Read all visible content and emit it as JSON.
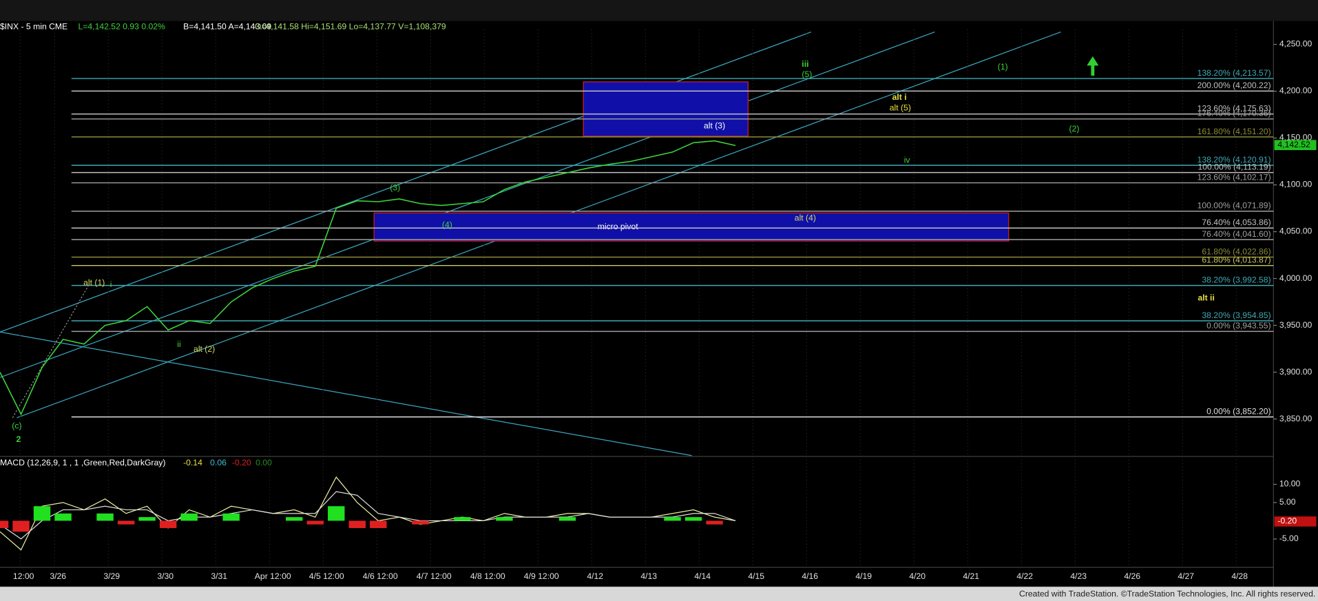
{
  "chart_data": [
    {
      "type": "line",
      "header": [
        {
          "text": "$INX - 5 min  CME",
          "color": "#ffffff"
        },
        {
          "text": "L=4,142.52  0.93  0.02%",
          "color": "#3cd43c"
        },
        {
          "text": "B=4,141.50  A=4,143.09",
          "color": "#ffffff"
        },
        {
          "text": "O=4,141.58  Hi=4,151.69  Lo=4,137.77  V=1,108,379",
          "color": "#a8e070"
        }
      ],
      "series": [
        {
          "name": "$INX",
          "color": "#3cd43c",
          "values": [
            3900,
            3855,
            3905,
            3935,
            3930,
            3950,
            3955,
            3970,
            3945,
            3955,
            3952,
            3975,
            3990,
            4000,
            4008,
            4013,
            4075,
            4083,
            4082,
            4085,
            4080,
            4078,
            4080,
            4082,
            4095,
            4103,
            4108,
            4113,
            4118,
            4122,
            4125,
            4130,
            4135,
            4145,
            4147,
            4142
          ]
        }
      ],
      "last": {
        "value": 4142.52,
        "label": "4,142.52"
      },
      "ylim": [
        3810,
        4266
      ],
      "yticks": [
        {
          "value": 4250,
          "label": "4,250.00"
        },
        {
          "value": 4200,
          "label": "4,200.00"
        },
        {
          "value": 4150,
          "label": "4,150.00"
        },
        {
          "value": 4100,
          "label": "4,100.00"
        },
        {
          "value": 4050,
          "label": "4,050.00"
        },
        {
          "value": 4000,
          "label": "4,000.00"
        },
        {
          "value": 3950,
          "label": "3,950.00"
        },
        {
          "value": 3900,
          "label": "3,900.00"
        },
        {
          "value": 3850,
          "label": "3,850.00"
        }
      ],
      "levels": [
        {
          "label": "138.20% (4,213.57)",
          "value": 4213.57,
          "color": "#3fa9b5"
        },
        {
          "label": "200.00% (4,200.22)",
          "value": 4200.22,
          "color": "#c0c0c0"
        },
        {
          "label": "123.60% (4,175.63)",
          "value": 4175.63,
          "color": "#c0c0c0"
        },
        {
          "label": "176.40% (4,170.36)",
          "value": 4170.36,
          "color": "#a0a0a0"
        },
        {
          "label": "161.80% (4,151.20)",
          "value": 4151.2,
          "color": "#8c8c3a"
        },
        {
          "label": "138.20% (4,120.91)",
          "value": 4120.91,
          "color": "#3fa9b5"
        },
        {
          "label": "100.00% (4,113.19)",
          "value": 4113.19,
          "color": "#c0c0c0"
        },
        {
          "label": "123.60% (4,102.17)",
          "value": 4102.17,
          "color": "#a0a0a0"
        },
        {
          "label": "100.00% (4,071.89)",
          "value": 4071.89,
          "color": "#a0a0a0"
        },
        {
          "label": "76.40% (4,053.86)",
          "value": 4053.86,
          "color": "#c0c0c0"
        },
        {
          "label": "76.40% (4,041.60)",
          "value": 4041.6,
          "color": "#a0a0a0"
        },
        {
          "label": "61.80% (4,022.86)",
          "value": 4022.86,
          "color": "#8c8c3a"
        },
        {
          "label": "61.80% (4,013.87)",
          "value": 4013.87,
          "color": "#c8c860"
        },
        {
          "label": "38.20% (3,992.58)",
          "value": 3992.58,
          "color": "#3fa9b5"
        },
        {
          "label": "38.20% (3,954.85)",
          "value": 3954.85,
          "color": "#3fa9b5"
        },
        {
          "label": "0.00% (3,943.55)",
          "value": 3943.55,
          "color": "#a0a0a0"
        },
        {
          "label": "0.00% (3,852.20)",
          "value": 3852.2,
          "color": "#e0e0e0"
        }
      ],
      "zones": [
        {
          "high": 4210,
          "low": 4152
        },
        {
          "label": "micro pivot",
          "high": 4070,
          "low": 4040
        }
      ],
      "annotations": [
        {
          "text": "2",
          "color": "#3cd43c"
        },
        {
          "text": "(c)",
          "color": "#3cd43c"
        },
        {
          "text": "alt (1)",
          "color": "#d8d860"
        },
        {
          "text": "i",
          "color": "#3cd43c"
        },
        {
          "text": "ii",
          "color": "#3cd43c"
        },
        {
          "text": "alt (2)",
          "color": "#d8d860"
        },
        {
          "text": "(3)",
          "color": "#3cd43c"
        },
        {
          "text": "(4)",
          "color": "#3cd43c"
        },
        {
          "text": "alt (4)",
          "color": "#d8d860"
        },
        {
          "text": "alt (3)",
          "color": "#ffffff"
        },
        {
          "text": "iii",
          "color": "#3cd43c"
        },
        {
          "text": "(5)",
          "color": "#3cd43c"
        },
        {
          "text": "alt i",
          "color": "#e8e040"
        },
        {
          "text": "alt (5)",
          "color": "#e8e040"
        },
        {
          "text": "iv",
          "color": "#3cd43c"
        },
        {
          "text": "(1)",
          "color": "#3cd43c"
        },
        {
          "text": "(2)",
          "color": "#3cd43c"
        },
        {
          "text": "alt ii",
          "color": "#e8e040"
        }
      ]
    },
    {
      "type": "macd",
      "title": "MACD (12,26,9, 1 , 1 ,Green,Red,DarkGray)",
      "readouts": [
        {
          "text": "-0.14",
          "color": "#e8e040"
        },
        {
          "text": "0.06",
          "color": "#3fc0d0"
        },
        {
          "text": "-0.20",
          "color": "#e02020"
        },
        {
          "text": "0.00",
          "color": "#209020"
        }
      ],
      "series": [
        {
          "name": "MACD",
          "color": "#f0f0a0",
          "values": [
            -3,
            -8,
            4,
            5,
            3,
            6,
            2,
            4,
            -2,
            3,
            1,
            4,
            3,
            2,
            3,
            1,
            12,
            5,
            0,
            1,
            -1,
            0,
            1,
            0,
            2,
            1,
            1,
            2,
            2,
            1,
            1,
            1,
            2,
            3,
            1,
            0
          ]
        },
        {
          "name": "Signal",
          "color": "#e0e0e0",
          "values": [
            -1,
            -5,
            0,
            3,
            3,
            4,
            3,
            3,
            0,
            1,
            1,
            2,
            3,
            2,
            2,
            2,
            8,
            7,
            2,
            1,
            0,
            0,
            0,
            0,
            1,
            1,
            1,
            1,
            2,
            1,
            1,
            1,
            1,
            2,
            2,
            0
          ]
        },
        {
          "name": "Histogram",
          "values": [
            -2,
            -3,
            4,
            2,
            0,
            2,
            -1,
            1,
            -2,
            2,
            0,
            2,
            0,
            0,
            1,
            -1,
            4,
            -2,
            -2,
            0,
            -1,
            0,
            1,
            0,
            1,
            0,
            0,
            1,
            0,
            0,
            0,
            0,
            1,
            1,
            -1,
            0
          ]
        }
      ],
      "last": {
        "value": -0.2,
        "label": "-0.20"
      },
      "ylim": [
        -12.8,
        17.2
      ],
      "yticks": [
        {
          "value": 10,
          "label": "10.00"
        },
        {
          "value": 5,
          "label": "5.00"
        },
        {
          "value": -5,
          "label": "-5.00"
        }
      ],
      "x_axis_labels": [
        "12:00",
        "3/26",
        "3/29",
        "3/30",
        "3/31",
        "Apr 12:00",
        "4/5 12:00",
        "4/6 12:00",
        "4/7 12:00",
        "4/8 12:00",
        "4/9 12:00",
        "4/12",
        "4/13",
        "4/14",
        "4/15",
        "4/16",
        "4/19",
        "4/20",
        "4/21",
        "4/22",
        "4/23",
        "4/26",
        "4/27",
        "4/28"
      ]
    }
  ],
  "footer": "Created with TradeStation. ©TradeStation Technologies, Inc. All rights reserved."
}
